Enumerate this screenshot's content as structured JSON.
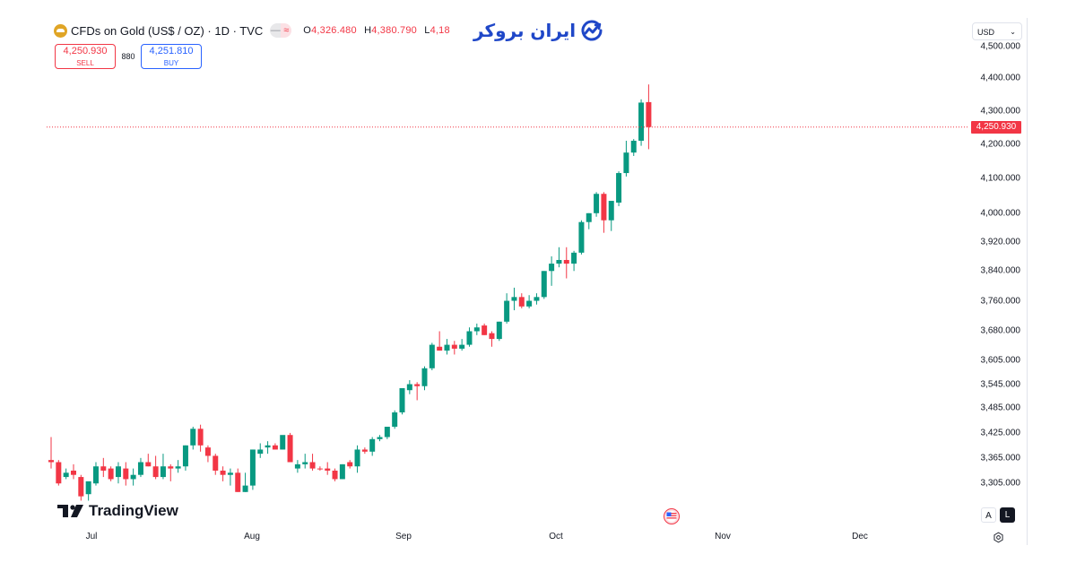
{
  "header": {
    "symbol_title": "CFDs on Gold (US$ / OZ) · 1D · TVC",
    "icon": "gold-coin-icon",
    "status_pill": [
      "—",
      "≈"
    ],
    "ohlc": {
      "o_label": "O",
      "o_value": "4,326.480",
      "h_label": "H",
      "h_value": "4,380.790",
      "l_label": "L",
      "l_value": "4,18"
    }
  },
  "trade": {
    "sell_price": "4,250.930",
    "sell_label": "SELL",
    "spread": "880",
    "buy_price": "4,251.810",
    "buy_label": "BUY"
  },
  "brand": {
    "text": "ایران بروکر",
    "icon": "trend-chart-icon"
  },
  "price_axis": {
    "currency": "USD",
    "current_price": "4,250.930",
    "current_price_color": "#f23645"
  },
  "time_axis": [
    "Jul",
    "Aug",
    "Sep",
    "Oct",
    "Nov",
    "Dec"
  ],
  "footer": {
    "tv_logo_text": "TradingView",
    "auto_label": "A",
    "log_label": "L"
  },
  "colors": {
    "up": "#089981",
    "down": "#f23645",
    "buy": "#2962ff",
    "grid_line": "#e0e3eb"
  },
  "chart_data": {
    "type": "candlestick",
    "title": "CFDs on Gold (US$ / OZ) · 1D · TVC",
    "xlabel": "",
    "ylabel": "USD",
    "scale": "log",
    "ylim": [
      3280,
      4420
    ],
    "y_ticks": [
      "4,400.000",
      "4,300.000",
      "4,200.000",
      "4,100.000",
      "4,000.000",
      "3,920.000",
      "3,840.000",
      "3,760.000",
      "3,680.000",
      "3,605.000",
      "3,545.000",
      "3,485.000",
      "3,425.000",
      "3,365.000",
      "3,305.000"
    ],
    "x_ticks": [
      "Jul",
      "Aug",
      "Sep",
      "Oct",
      "Nov",
      "Dec"
    ],
    "grid": false,
    "last_price": 4250.93,
    "candles_note": "approximate OHLC per daily bar [open, high, low, close], read from pixel positions",
    "candles": [
      [
        3360,
        3415,
        3340,
        3355
      ],
      [
        3355,
        3360,
        3300,
        3305
      ],
      [
        3320,
        3340,
        3315,
        3330
      ],
      [
        3335,
        3350,
        3315,
        3325
      ],
      [
        3320,
        3325,
        3265,
        3275
      ],
      [
        3280,
        3305,
        3265,
        3310
      ],
      [
        3305,
        3355,
        3300,
        3345
      ],
      [
        3345,
        3365,
        3320,
        3335
      ],
      [
        3340,
        3345,
        3310,
        3315
      ],
      [
        3320,
        3355,
        3305,
        3345
      ],
      [
        3340,
        3355,
        3300,
        3315
      ],
      [
        3315,
        3340,
        3300,
        3325
      ],
      [
        3325,
        3365,
        3320,
        3355
      ],
      [
        3355,
        3375,
        3345,
        3345
      ],
      [
        3345,
        3370,
        3315,
        3320
      ],
      [
        3320,
        3375,
        3315,
        3345
      ],
      [
        3345,
        3350,
        3310,
        3340
      ],
      [
        3340,
        3360,
        3330,
        3345
      ],
      [
        3345,
        3395,
        3335,
        3395
      ],
      [
        3395,
        3440,
        3385,
        3435
      ],
      [
        3435,
        3445,
        3380,
        3395
      ],
      [
        3390,
        3395,
        3355,
        3370
      ],
      [
        3370,
        3375,
        3325,
        3335
      ],
      [
        3335,
        3345,
        3310,
        3325
      ],
      [
        3325,
        3340,
        3300,
        3330
      ],
      [
        3330,
        3340,
        3285,
        3285
      ],
      [
        3285,
        3330,
        3285,
        3300
      ],
      [
        3300,
        3385,
        3290,
        3385
      ],
      [
        3375,
        3400,
        3365,
        3385
      ],
      [
        3390,
        3405,
        3375,
        3395
      ],
      [
        3395,
        3400,
        3385,
        3385
      ],
      [
        3385,
        3415,
        3385,
        3420
      ],
      [
        3420,
        3425,
        3355,
        3355
      ],
      [
        3340,
        3360,
        3330,
        3350
      ],
      [
        3350,
        3375,
        3340,
        3355
      ],
      [
        3355,
        3375,
        3335,
        3340
      ],
      [
        3340,
        3345,
        3335,
        3338
      ],
      [
        3340,
        3355,
        3325,
        3335
      ],
      [
        3335,
        3340,
        3310,
        3315
      ],
      [
        3315,
        3350,
        3315,
        3350
      ],
      [
        3355,
        3360,
        3340,
        3345
      ],
      [
        3345,
        3395,
        3330,
        3385
      ],
      [
        3385,
        3390,
        3375,
        3380
      ],
      [
        3380,
        3415,
        3370,
        3410
      ],
      [
        3410,
        3420,
        3405,
        3415
      ],
      [
        3415,
        3440,
        3410,
        3440
      ],
      [
        3440,
        3480,
        3435,
        3475
      ],
      [
        3475,
        3535,
        3470,
        3535
      ],
      [
        3530,
        3555,
        3520,
        3545
      ],
      [
        3545,
        3550,
        3505,
        3540
      ],
      [
        3540,
        3590,
        3530,
        3585
      ],
      [
        3585,
        3650,
        3580,
        3645
      ],
      [
        3640,
        3680,
        3630,
        3630
      ],
      [
        3630,
        3660,
        3620,
        3645
      ],
      [
        3645,
        3655,
        3620,
        3635
      ],
      [
        3635,
        3660,
        3630,
        3645
      ],
      [
        3645,
        3690,
        3640,
        3680
      ],
      [
        3680,
        3700,
        3670,
        3690
      ],
      [
        3695,
        3700,
        3670,
        3670
      ],
      [
        3675,
        3680,
        3640,
        3660
      ],
      [
        3660,
        3705,
        3655,
        3705
      ],
      [
        3705,
        3780,
        3700,
        3760
      ],
      [
        3760,
        3795,
        3735,
        3770
      ],
      [
        3770,
        3780,
        3740,
        3745
      ],
      [
        3745,
        3775,
        3740,
        3760
      ],
      [
        3760,
        3780,
        3750,
        3770
      ],
      [
        3770,
        3840,
        3765,
        3840
      ],
      [
        3840,
        3880,
        3800,
        3860
      ],
      [
        3860,
        3905,
        3850,
        3870
      ],
      [
        3870,
        3905,
        3820,
        3860
      ],
      [
        3860,
        3895,
        3840,
        3890
      ],
      [
        3890,
        3980,
        3885,
        3975
      ],
      [
        3975,
        4000,
        3955,
        4000
      ],
      [
        4000,
        4060,
        3990,
        4055
      ],
      [
        4055,
        4060,
        3945,
        3980
      ],
      [
        3980,
        4030,
        3950,
        4035
      ],
      [
        4030,
        4120,
        4020,
        4115
      ],
      [
        4115,
        4210,
        4105,
        4175
      ],
      [
        4175,
        4215,
        4165,
        4210
      ],
      [
        4210,
        4335,
        4195,
        4325
      ],
      [
        4326.48,
        4380.79,
        4185,
        4250.93
      ]
    ]
  }
}
